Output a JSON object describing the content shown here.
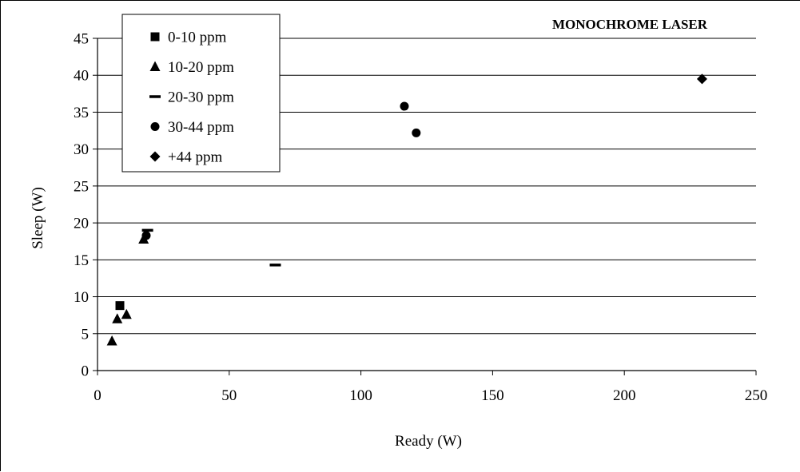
{
  "chart_data": {
    "type": "scatter",
    "title": "MONOCHROME LASER",
    "xlabel": "Ready (W)",
    "ylabel": "Sleep (W)",
    "xlim": [
      0,
      250
    ],
    "ylim": [
      0,
      45
    ],
    "xticks": [
      0,
      50,
      100,
      150,
      200,
      250
    ],
    "yticks": [
      0,
      5,
      10,
      15,
      20,
      25,
      30,
      35,
      40,
      45
    ],
    "grid": "horizontal",
    "legend_position": "top-left",
    "series": [
      {
        "name": "0-10 ppm",
        "marker": "square",
        "points": [
          [
            8.5,
            8.8
          ]
        ]
      },
      {
        "name": "10-20 ppm",
        "marker": "triangle",
        "points": [
          [
            5.5,
            4.0
          ],
          [
            7.5,
            7.0
          ],
          [
            11.0,
            7.6
          ],
          [
            17.5,
            17.8
          ]
        ]
      },
      {
        "name": "20-30 ppm",
        "marker": "dash",
        "points": [
          [
            67.5,
            14.3
          ],
          [
            19.0,
            19.0
          ]
        ]
      },
      {
        "name": "30-44 ppm",
        "marker": "circle",
        "points": [
          [
            18.5,
            18.3
          ],
          [
            116.5,
            35.8
          ],
          [
            121.0,
            32.2
          ]
        ]
      },
      {
        "name": "+44 ppm",
        "marker": "diamond",
        "points": [
          [
            229.5,
            39.5
          ]
        ]
      }
    ],
    "marker_color": "#000000",
    "gridline_color": "#000000"
  }
}
